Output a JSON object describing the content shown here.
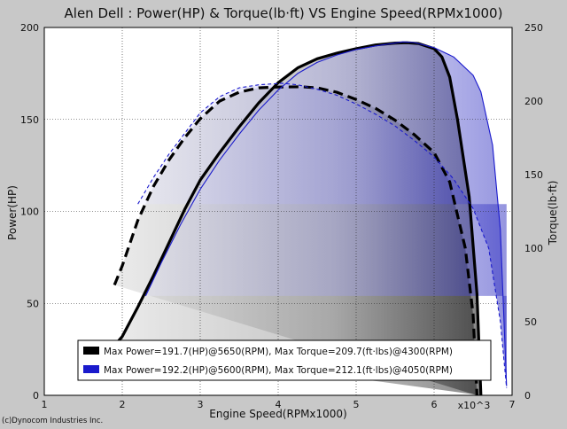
{
  "chart_data": {
    "type": "line",
    "title": "Alen Dell : Power(HP) & Torque(lb·ft) VS Engine Speed(RPMx1000)",
    "xlabel": "Engine Speed(RPMx1000)",
    "x_multiplier": "x10^3",
    "ylabel_left": "Power(HP)",
    "ylabel_right": "Torque(lb·ft)",
    "xlim": [
      1,
      7
    ],
    "ylim_left": [
      0,
      200
    ],
    "ylim_right": [
      0,
      250
    ],
    "x_ticks": [
      "1",
      "2",
      "3",
      "4",
      "5",
      "6",
      "7"
    ],
    "y_left_ticks": [
      "0",
      "50",
      "100",
      "150",
      "200"
    ],
    "y_right_ticks": [
      "0",
      "50",
      "100",
      "150",
      "200",
      "250"
    ],
    "grid": true,
    "legend_position": "bottom",
    "legend": [
      "Max Power=191.7(HP)@5650(RPM), Max Torque=209.7(ft·lbs)@4300(RPM)",
      "Max Power=192.2(HP)@5600(RPM), Max Torque=212.1(ft·lbs)@4050(RPM)"
    ],
    "copyright": "(c)Dynocom Industries Inc.",
    "colors": {
      "run1": "#000000",
      "run2": "#1a1acc"
    },
    "series": [
      {
        "axis": "left",
        "run": 1,
        "x": [
          1.9,
          2.0,
          2.2,
          2.4,
          2.6,
          2.8,
          3.0,
          3.25,
          3.5,
          3.75,
          4.0,
          4.25,
          4.5,
          4.75,
          5.0,
          5.25,
          5.5,
          5.65,
          5.8,
          6.0,
          6.1,
          6.2,
          6.3,
          6.45,
          6.55,
          6.6
        ],
        "y": [
          27,
          32,
          48,
          65,
          83,
          101,
          117,
          132,
          146,
          159,
          170,
          178,
          183,
          186,
          188.5,
          190.5,
          191.5,
          191.7,
          191.3,
          188.5,
          184,
          173,
          150,
          108,
          55,
          0
        ]
      },
      {
        "axis": "right",
        "run": 1,
        "x": [
          1.9,
          2.0,
          2.2,
          2.4,
          2.6,
          2.8,
          3.0,
          3.25,
          3.5,
          3.75,
          4.0,
          4.3,
          4.5,
          4.75,
          5.0,
          5.25,
          5.5,
          5.75,
          6.0,
          6.2,
          6.4,
          6.5,
          6.55
        ],
        "y": [
          75,
          88,
          119,
          142,
          160,
          175,
          188,
          200,
          206,
          209,
          209.5,
          209.7,
          209,
          206,
          201,
          195,
          187,
          177,
          165,
          145,
          100,
          55,
          0
        ]
      },
      {
        "axis": "left",
        "run": 2,
        "x": [
          2.3,
          2.5,
          2.75,
          3.0,
          3.25,
          3.5,
          3.75,
          4.0,
          4.25,
          4.5,
          4.75,
          5.0,
          5.25,
          5.5,
          5.6,
          5.75,
          6.0,
          6.25,
          6.5,
          6.6,
          6.75,
          6.85,
          6.93
        ],
        "y": [
          54,
          72,
          93,
          112,
          128,
          142,
          155,
          166,
          175,
          181,
          185,
          188,
          190,
          191.5,
          192.2,
          191.8,
          189,
          184,
          174,
          165,
          136,
          90,
          5
        ]
      },
      {
        "axis": "right",
        "run": 2,
        "x": [
          2.2,
          2.4,
          2.6,
          2.8,
          3.0,
          3.25,
          3.5,
          3.75,
          4.05,
          4.25,
          4.5,
          4.75,
          5.0,
          5.25,
          5.5,
          5.75,
          6.0,
          6.25,
          6.5,
          6.7,
          6.85,
          6.93
        ],
        "y": [
          130,
          148,
          164,
          178,
          192,
          203,
          209,
          211,
          212.1,
          211,
          208,
          204,
          198,
          191,
          183,
          173,
          162,
          147,
          127,
          100,
          50,
          5
        ]
      }
    ]
  }
}
